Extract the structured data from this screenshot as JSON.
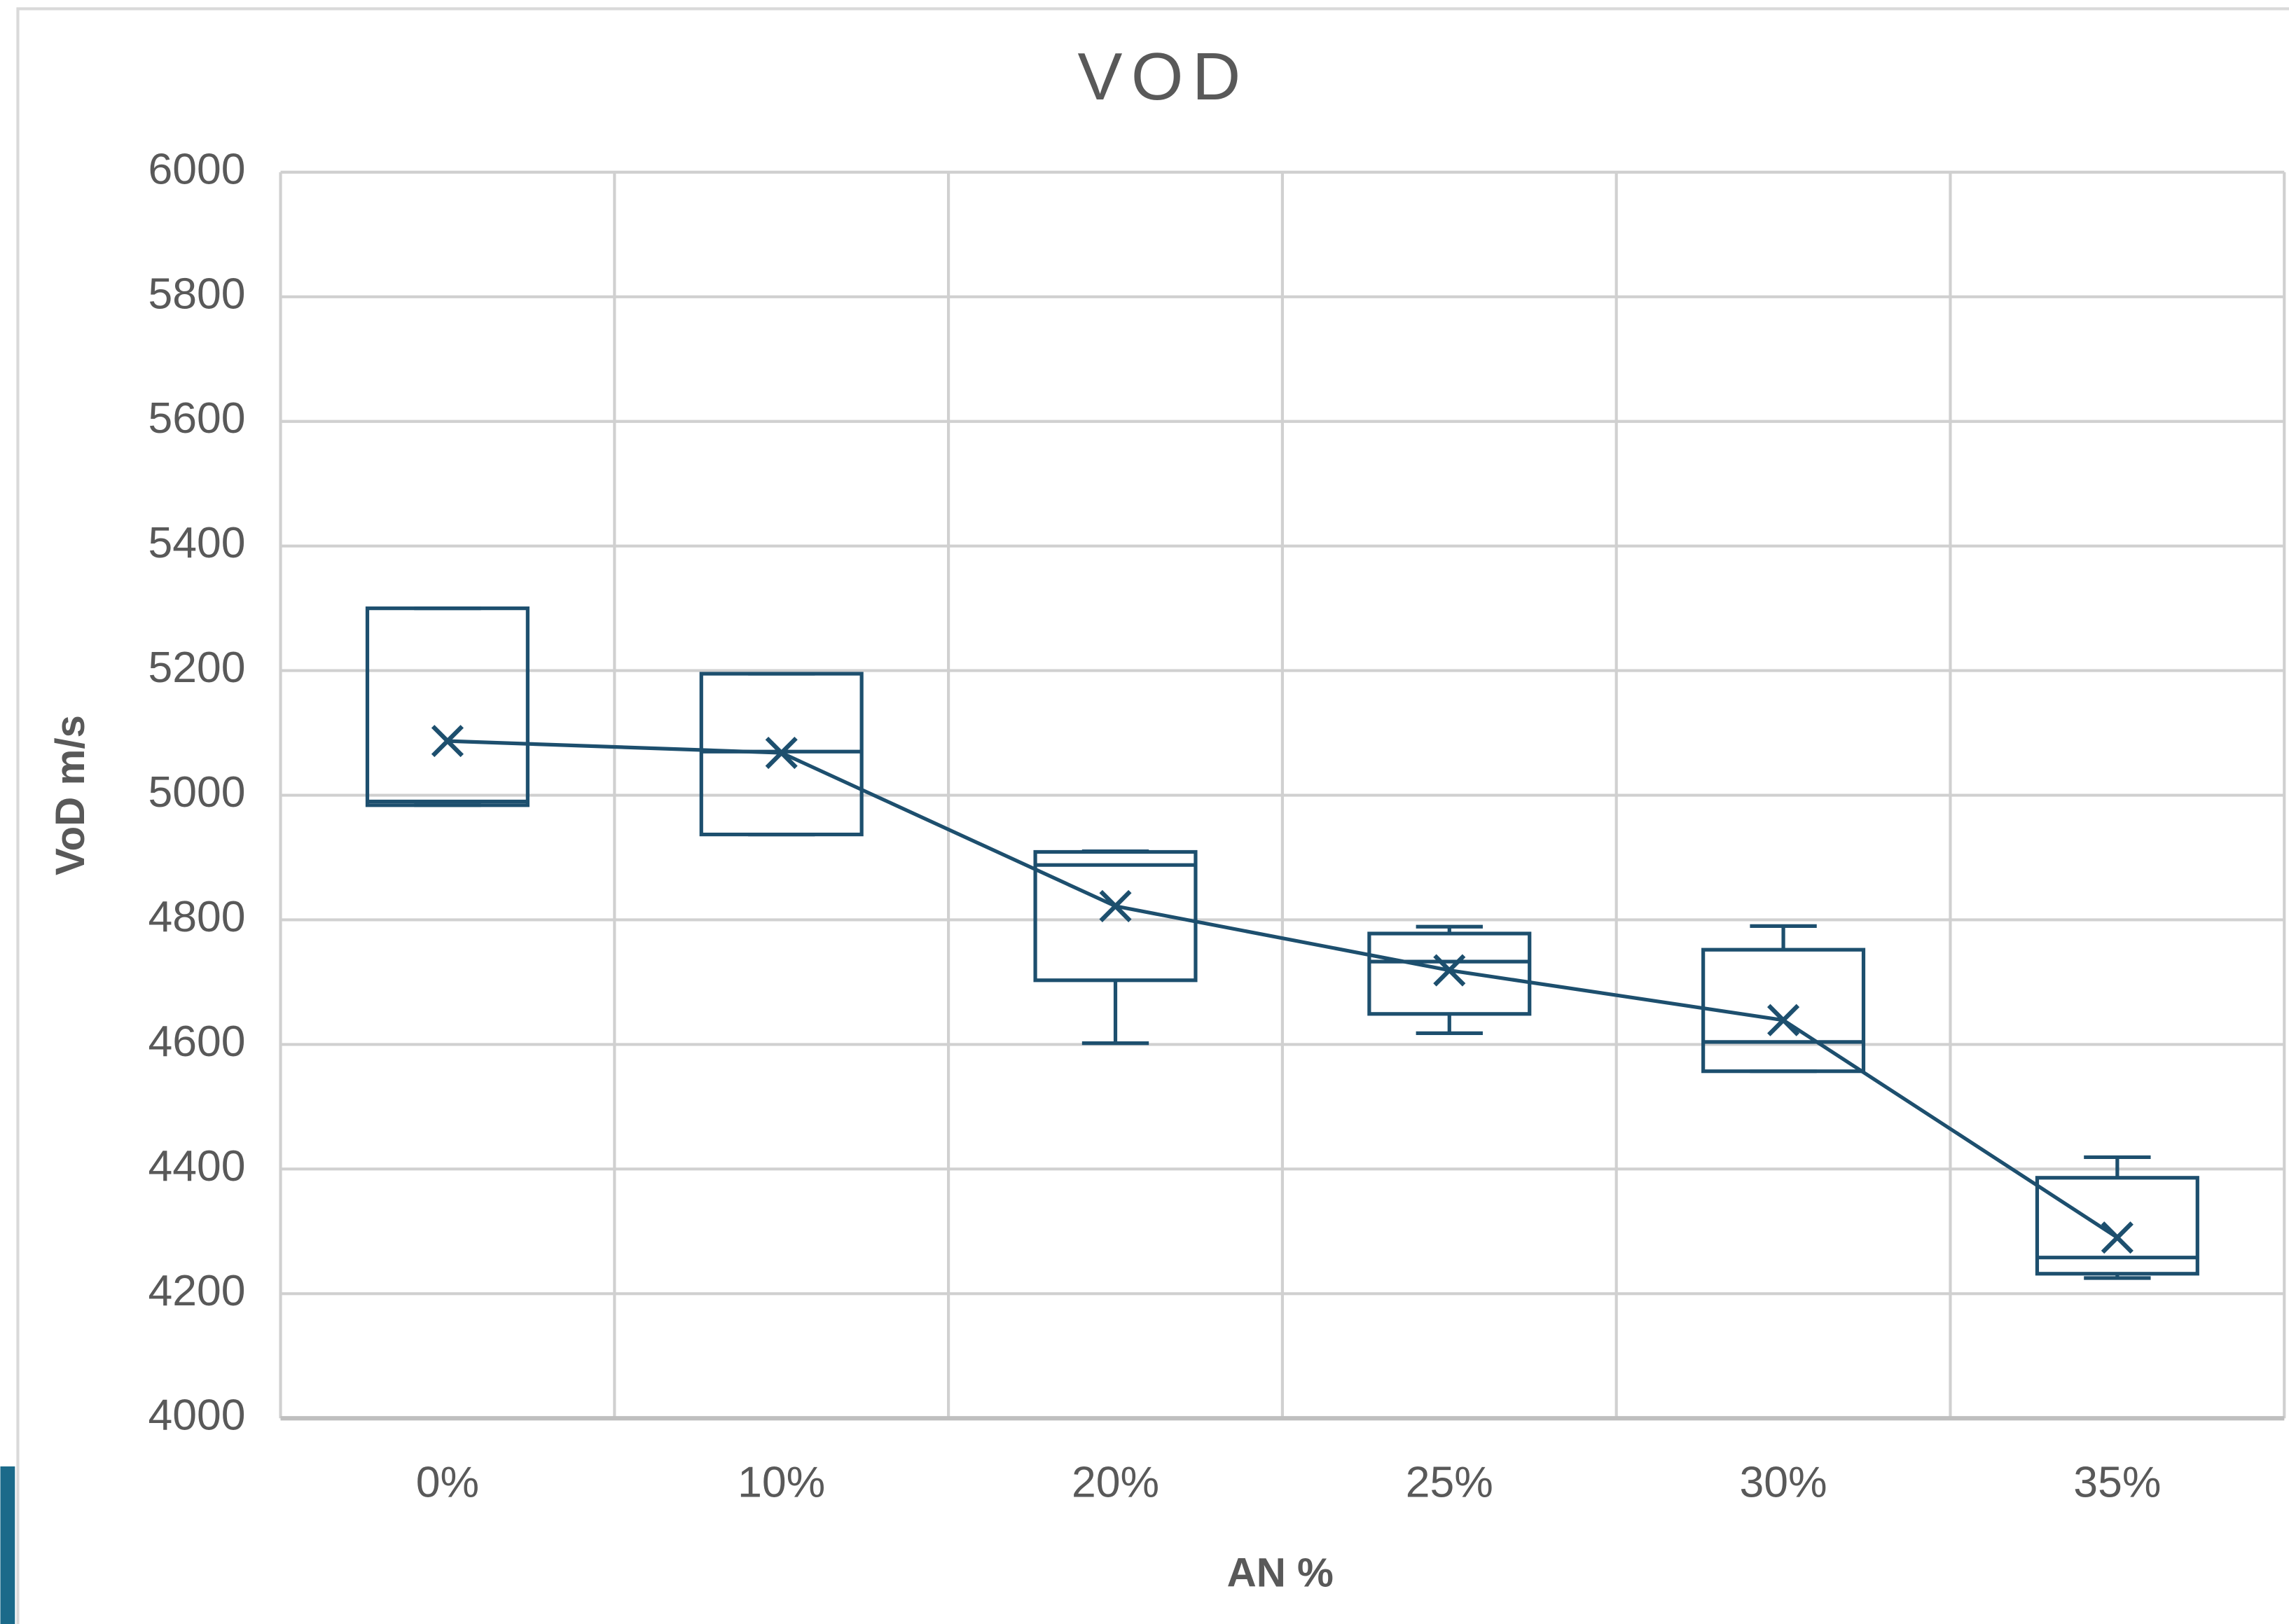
{
  "chart_data": {
    "type": "box",
    "title": "VOD",
    "x_label": "AN %",
    "y_label": "VoD m/s",
    "categories": [
      "0%",
      "10%",
      "20%",
      "25%",
      "30%",
      "35%"
    ],
    "min": [
      4984,
      4937,
      4602,
      4618,
      4557,
      4225
    ],
    "q1": [
      4984,
      4937,
      4703,
      4649,
      4557,
      4232
    ],
    "median": [
      4990,
      5070,
      4888,
      4733,
      4604,
      4258
    ],
    "q3": [
      5300,
      5195,
      4909,
      4778,
      4752,
      4386
    ],
    "max": [
      5300,
      5195,
      4910,
      4789,
      4790,
      4419
    ],
    "mean": [
      5087,
      5068,
      4822,
      4719,
      4639,
      4290
    ],
    "color": "#1d4f6e",
    "ylim": [
      4000,
      6000
    ],
    "yticks": [
      4000,
      4200,
      4400,
      4600,
      4800,
      5000,
      5200,
      5400,
      5600,
      5800,
      6000
    ],
    "grid": true
  }
}
